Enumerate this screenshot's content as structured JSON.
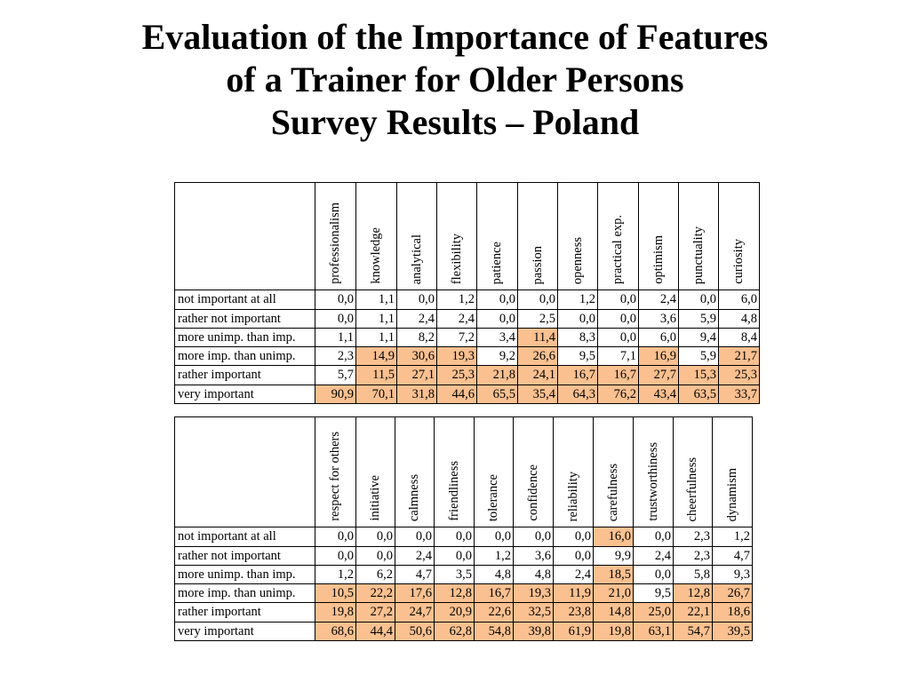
{
  "title": {
    "line1": "Evaluation of the Importance of Features",
    "line2": "of a Trainer for Older Persons",
    "line3": "Survey Results – Poland"
  },
  "colors": {
    "highlight": "#fac090",
    "border": "#000000"
  },
  "row_labels": [
    "not important at all",
    "rather not important",
    "more unimp. than imp.",
    "more imp. than unimp.",
    "rather important",
    "very important"
  ],
  "tables": [
    {
      "columns": [
        "professionalism",
        "knowledge",
        "analytical",
        "flexibility",
        "patience",
        "passion",
        "openness",
        "practical exp.",
        "optimism",
        "punctuality",
        "curiosity"
      ],
      "rows": [
        [
          "0,0",
          "1,1",
          "0,0",
          "1,2",
          "0,0",
          "0,0",
          "1,2",
          "0,0",
          "2,4",
          "0,0",
          "6,0"
        ],
        [
          "0,0",
          "1,1",
          "2,4",
          "2,4",
          "0,0",
          "2,5",
          "0,0",
          "0,0",
          "3,6",
          "5,9",
          "4,8"
        ],
        [
          "1,1",
          "1,1",
          "8,2",
          "7,2",
          "3,4",
          "11,4",
          "8,3",
          "0,0",
          "6,0",
          "9,4",
          "8,4"
        ],
        [
          "2,3",
          "14,9",
          "30,6",
          "19,3",
          "9,2",
          "26,6",
          "9,5",
          "7,1",
          "16,9",
          "5,9",
          "21,7"
        ],
        [
          "5,7",
          "11,5",
          "27,1",
          "25,3",
          "21,8",
          "24,1",
          "16,7",
          "16,7",
          "27,7",
          "15,3",
          "25,3"
        ],
        [
          "90,9",
          "70,1",
          "31,8",
          "44,6",
          "65,5",
          "35,4",
          "64,3",
          "76,2",
          "43,4",
          "63,5",
          "33,7"
        ]
      ],
      "highlighted": [
        [
          false,
          false,
          false,
          false,
          false,
          false,
          false,
          false,
          false,
          false,
          false
        ],
        [
          false,
          false,
          false,
          false,
          false,
          false,
          false,
          false,
          false,
          false,
          false
        ],
        [
          false,
          false,
          false,
          false,
          false,
          true,
          false,
          false,
          false,
          false,
          false
        ],
        [
          false,
          true,
          true,
          true,
          false,
          true,
          false,
          false,
          true,
          false,
          true
        ],
        [
          false,
          true,
          true,
          true,
          true,
          true,
          true,
          true,
          true,
          true,
          true
        ],
        [
          true,
          true,
          true,
          true,
          true,
          true,
          true,
          true,
          true,
          true,
          true
        ]
      ]
    },
    {
      "columns": [
        "respect for others",
        "initiative",
        "calmness",
        "friendliness",
        "tolerance",
        "confidence",
        "reliability",
        "carefulness",
        "trustworthiness",
        "cheerfulness",
        "dynamism"
      ],
      "rows": [
        [
          "0,0",
          "0,0",
          "0,0",
          "0,0",
          "0,0",
          "0,0",
          "0,0",
          "16,0",
          "0,0",
          "2,3",
          "1,2"
        ],
        [
          "0,0",
          "0,0",
          "2,4",
          "0,0",
          "1,2",
          "3,6",
          "0,0",
          "9,9",
          "2,4",
          "2,3",
          "4,7"
        ],
        [
          "1,2",
          "6,2",
          "4,7",
          "3,5",
          "4,8",
          "4,8",
          "2,4",
          "18,5",
          "0,0",
          "5,8",
          "9,3"
        ],
        [
          "10,5",
          "22,2",
          "17,6",
          "12,8",
          "16,7",
          "19,3",
          "11,9",
          "21,0",
          "9,5",
          "12,8",
          "26,7"
        ],
        [
          "19,8",
          "27,2",
          "24,7",
          "20,9",
          "22,6",
          "32,5",
          "23,8",
          "14,8",
          "25,0",
          "22,1",
          "18,6"
        ],
        [
          "68,6",
          "44,4",
          "50,6",
          "62,8",
          "54,8",
          "39,8",
          "61,9",
          "19,8",
          "63,1",
          "54,7",
          "39,5"
        ]
      ],
      "highlighted": [
        [
          false,
          false,
          false,
          false,
          false,
          false,
          false,
          true,
          false,
          false,
          false
        ],
        [
          false,
          false,
          false,
          false,
          false,
          false,
          false,
          false,
          false,
          false,
          false
        ],
        [
          false,
          false,
          false,
          false,
          false,
          false,
          false,
          true,
          false,
          false,
          false
        ],
        [
          true,
          true,
          true,
          true,
          true,
          true,
          true,
          true,
          false,
          true,
          true
        ],
        [
          true,
          true,
          true,
          true,
          true,
          true,
          true,
          true,
          true,
          true,
          true
        ],
        [
          true,
          true,
          true,
          true,
          true,
          true,
          true,
          true,
          true,
          true,
          true
        ]
      ]
    }
  ]
}
